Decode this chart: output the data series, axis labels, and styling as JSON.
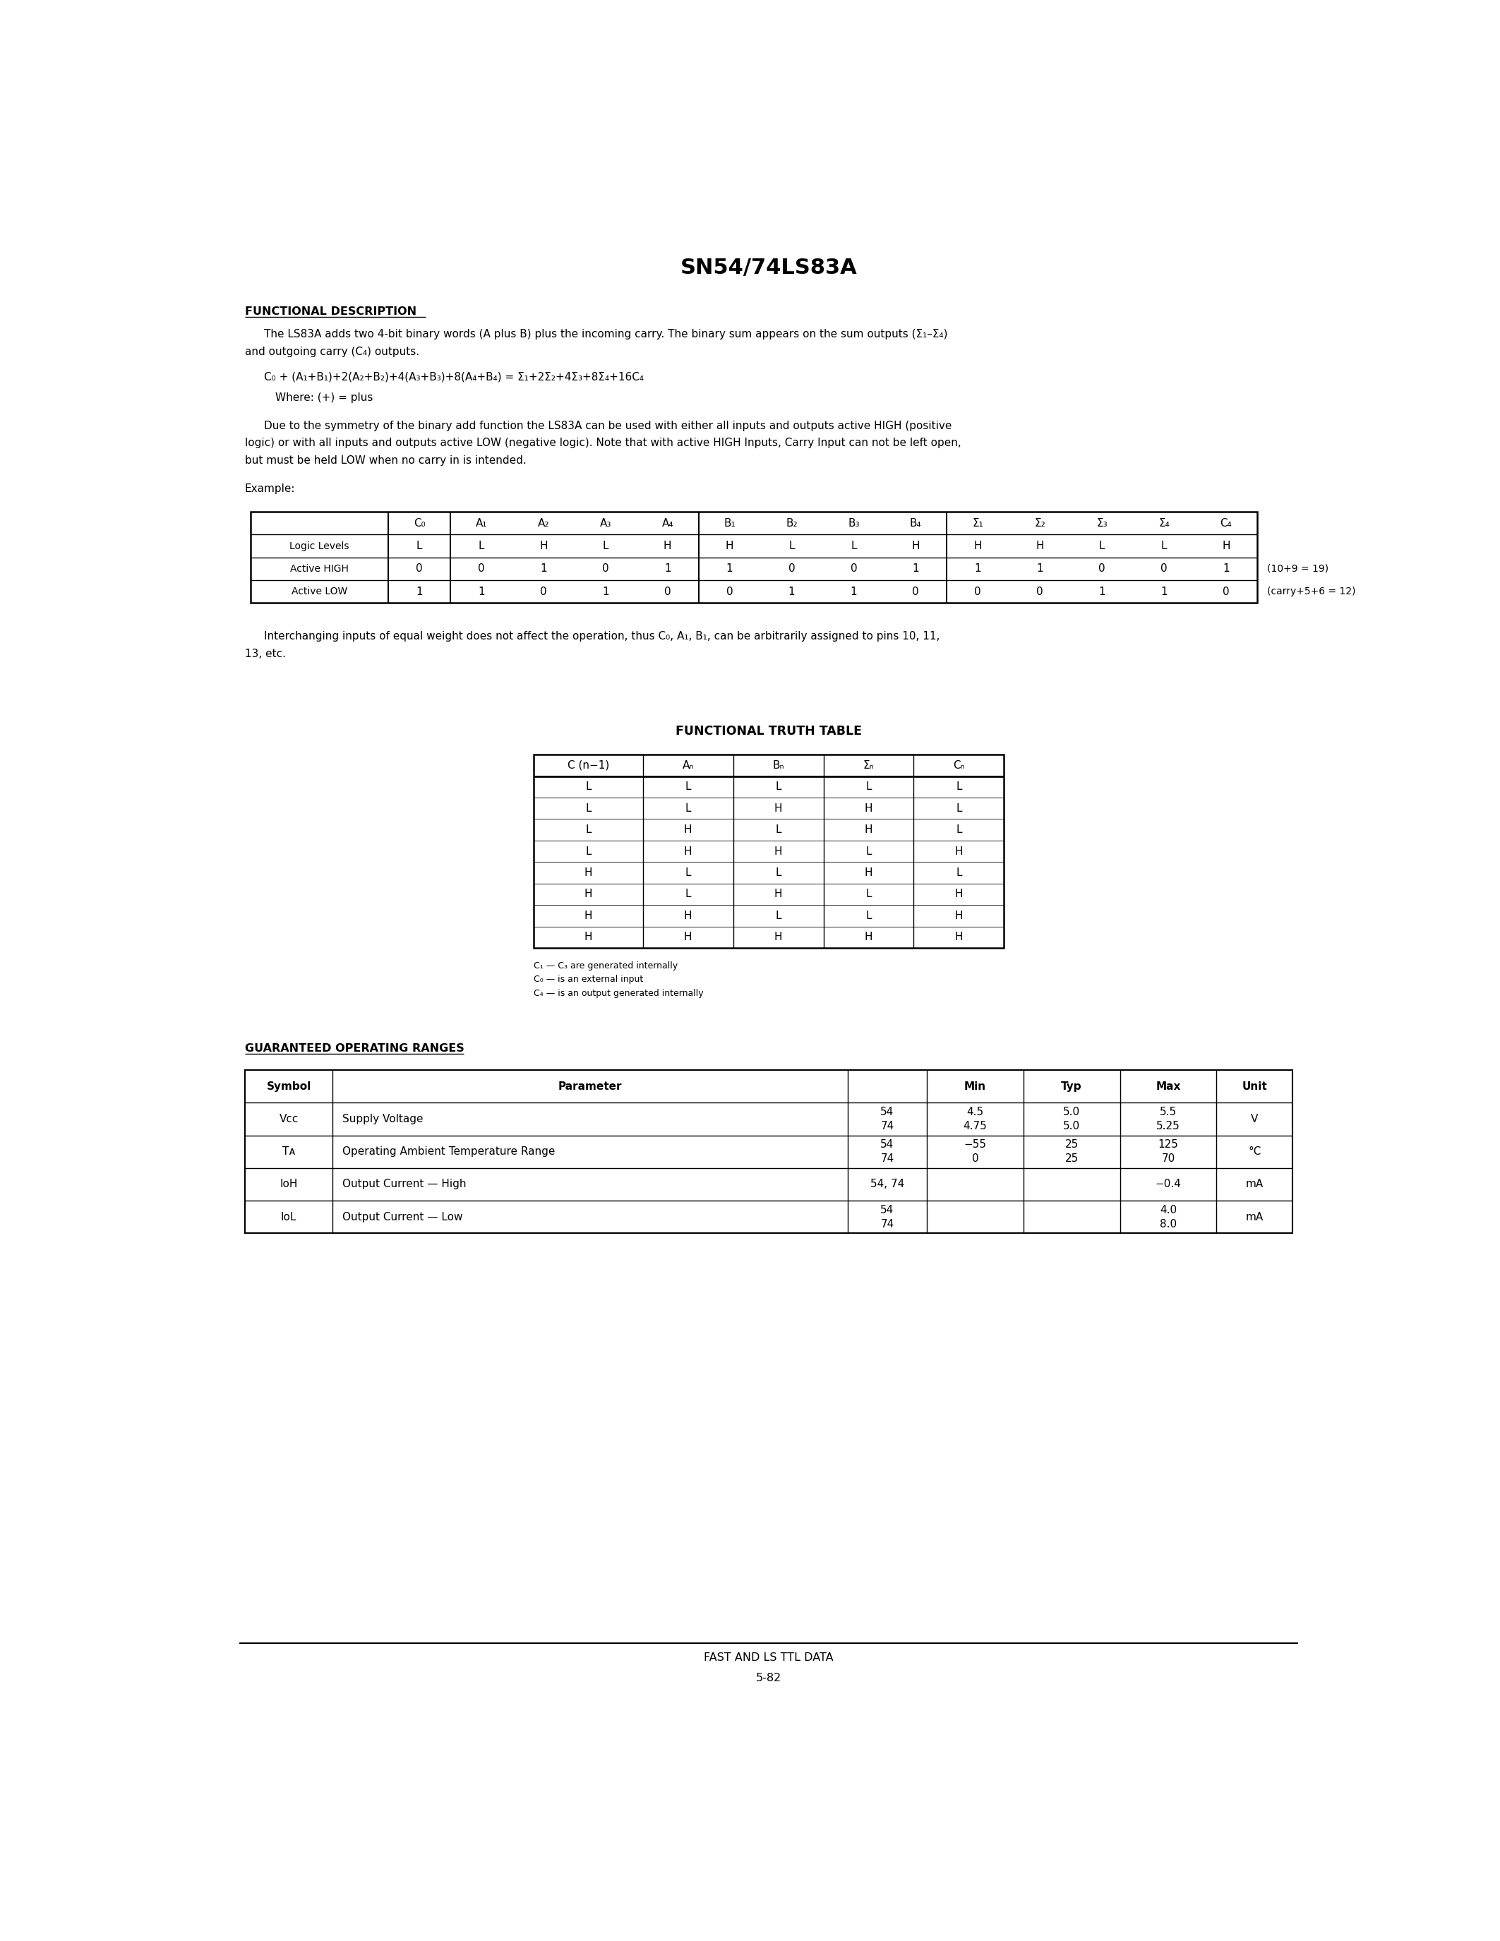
{
  "title": "SN54/74LS83A",
  "page_label": "FAST AND LS TTL DATA",
  "page_number": "5-82",
  "bg": "#ffffff",
  "section1_heading": "FUNCTIONAL DESCRIPTION",
  "p1_line1": "The LS83A adds two 4-bit binary words (A plus B) plus the incoming carry. The binary sum appears on the sum outputs (Σ₁–Σ₄)",
  "p1_line2": "and outgoing carry (C₄) outputs.",
  "equation": "C₀ + (A₁+B₁)+2(A₂+B₂)+4(A₃+B₃)+8(A₄+B₄) = Σ₁+2Σ₂+4Σ₃+8Σ₄+16C₄",
  "where_text": "Where: (+) = plus",
  "p2_line1": "Due to the symmetry of the binary add function the LS83A can be used with either all inputs and outputs active HIGH (positive",
  "p2_line2": "logic) or with all inputs and outputs active LOW (negative logic). Note that with active HIGH Inputs, Carry Input can not be left open,",
  "p2_line3": "but must be held LOW when no carry in is intended.",
  "example_label": "Example:",
  "ex_headers": [
    "C₀",
    "A₁",
    "A₂",
    "A₃",
    "A₄",
    "B₁",
    "B₂",
    "B₃",
    "B₄",
    "Σ₁",
    "Σ₂",
    "Σ₃",
    "Σ₄",
    "C₄"
  ],
  "ex_row1_label": "Logic Levels",
  "ex_row1": [
    "L",
    "L",
    "H",
    "L",
    "H",
    "H",
    "L",
    "L",
    "H",
    "H",
    "H",
    "L",
    "L",
    "H"
  ],
  "ex_row2_label": "Active HIGH",
  "ex_row2": [
    "0",
    "0",
    "1",
    "0",
    "1",
    "1",
    "0",
    "0",
    "1",
    "1",
    "1",
    "0",
    "0",
    "1"
  ],
  "ex_row2_note": "(10+9 = 19)",
  "ex_row3_label": "Active LOW",
  "ex_row3": [
    "1",
    "1",
    "0",
    "1",
    "0",
    "0",
    "1",
    "1",
    "0",
    "0",
    "0",
    "1",
    "1",
    "0"
  ],
  "ex_row3_note": "(carry+5+6 = 12)",
  "interchanging_line1": "Interchanging inputs of equal weight does not affect the operation, thus C₀, A₁, B₁, can be arbitrarily assigned to pins 10, 11,",
  "interchanging_line2": "13, etc.",
  "tt_heading": "FUNCTIONAL TRUTH TABLE",
  "tt_headers": [
    "C (n−1)",
    "Aₙ",
    "Bₙ",
    "Σₙ",
    "Cₙ"
  ],
  "tt_rows": [
    [
      "L",
      "L",
      "L",
      "L",
      "L"
    ],
    [
      "L",
      "L",
      "H",
      "H",
      "L"
    ],
    [
      "L",
      "H",
      "L",
      "H",
      "L"
    ],
    [
      "L",
      "H",
      "H",
      "L",
      "H"
    ],
    [
      "H",
      "L",
      "L",
      "H",
      "L"
    ],
    [
      "H",
      "L",
      "H",
      "L",
      "H"
    ],
    [
      "H",
      "H",
      "L",
      "L",
      "H"
    ],
    [
      "H",
      "H",
      "H",
      "H",
      "H"
    ]
  ],
  "tt_note1": "C₁ — C₃ are generated internally",
  "tt_note2": "C₀ — is an external input",
  "tt_note3": "C₄ — is an output generated internally",
  "gor_heading": "GUARANTEED OPERATING RANGES",
  "gor_col_headers": [
    "Symbol",
    "Parameter",
    "",
    "Min",
    "Typ",
    "Max",
    "Unit"
  ],
  "vcc_sym": "Vᴄᴄ",
  "ta_sym": "Tᴀ",
  "ioh_sym": "IᴏH",
  "iol_sym": "IᴏL",
  "gor_params": [
    "Supply Voltage",
    "Operating Ambient Temperature Range",
    "Output Current — High",
    "Output Current — Low"
  ],
  "gor_sub": [
    "54\n74",
    "54\n74",
    "54, 74",
    "54\n74"
  ],
  "gor_min": [
    "4.5\n4.75",
    "−55\n0",
    "",
    ""
  ],
  "gor_typ": [
    "5.0\n5.0",
    "25\n25",
    "",
    ""
  ],
  "gor_max": [
    "5.5\n5.25",
    "125\n70",
    "−0.4",
    "4.0\n8.0"
  ],
  "gor_unit": [
    "V",
    "°C",
    "mA",
    "mA"
  ]
}
